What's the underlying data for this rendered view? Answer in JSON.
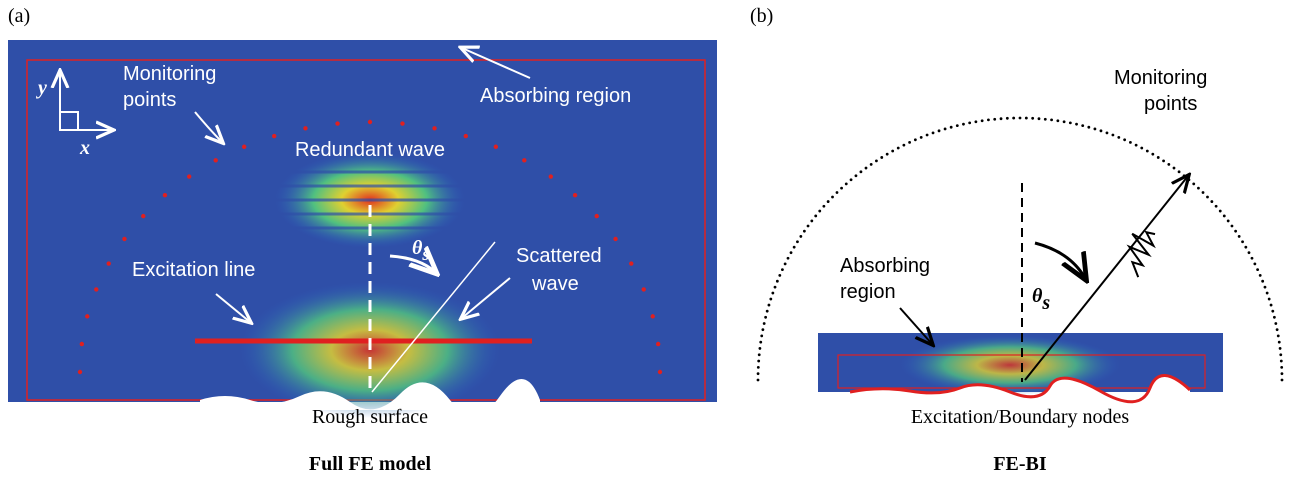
{
  "panels": [
    {
      "label": "(a)",
      "caption": "Full FE model",
      "monitoring": [
        "Monitoring",
        "points"
      ],
      "absorbing": [
        "Absorbing region"
      ],
      "axes": {
        "y": "y",
        "x": "x"
      },
      "redundant": "Redundant wave",
      "angle": {
        "symbol": "θ",
        "subscript": "s"
      },
      "scattered": [
        "Scattered",
        "wave"
      ],
      "excitation": "Excitation line",
      "surface": "Rough surface"
    },
    {
      "label": "(b)",
      "caption": "FE-BI",
      "monitoring": [
        "Monitoring",
        "points"
      ],
      "absorbing": [
        "Absorbing",
        "region"
      ],
      "angle": {
        "symbol": "θ",
        "subscript": "s"
      },
      "nodes": "Excitation/Boundary nodes"
    }
  ]
}
